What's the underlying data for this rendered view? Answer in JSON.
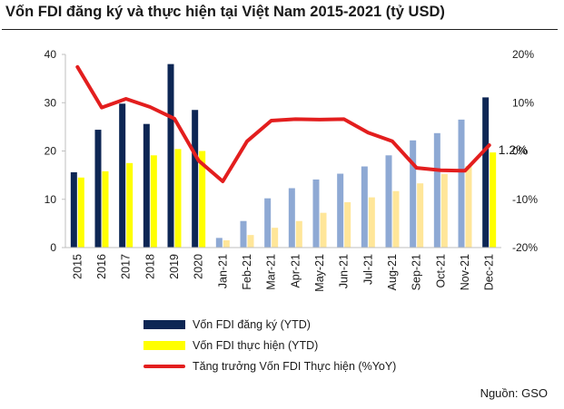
{
  "chart_data": {
    "type": "bar",
    "title": "Vốn FDI đăng ký và thực hiện tại Việt Nam 2015-2021 (tỷ USD)",
    "categories": [
      "2015",
      "2016",
      "2017",
      "2018",
      "2019",
      "2020",
      "Jan-21",
      "Feb-21",
      "Mar-21",
      "Apr-21",
      "May-21",
      "Jun-21",
      "Jul-21",
      "Aug-21",
      "Sep-21",
      "Oct-21",
      "Nov-21",
      "Dec-21"
    ],
    "left_axis": {
      "ylim": [
        0,
        40
      ],
      "ticks": [
        "0",
        "10",
        "20",
        "30",
        "40"
      ]
    },
    "right_axis": {
      "ylim": [
        -20,
        20
      ],
      "ticks": [
        "-20%",
        "-10%",
        "0%",
        "10%",
        "20%"
      ]
    },
    "series": [
      {
        "name": "Vốn FDI đăng ký (YTD)",
        "type": "bar",
        "axis": "left",
        "values": [
          15.6,
          24.4,
          29.8,
          25.6,
          38.0,
          28.5,
          2.0,
          5.5,
          10.2,
          12.3,
          14.1,
          15.3,
          16.8,
          19.1,
          22.2,
          23.7,
          26.5,
          31.1
        ],
        "colors": [
          "#0d2654",
          "#0d2654",
          "#0d2654",
          "#0d2654",
          "#0d2654",
          "#0d2654",
          "#8ea9d4",
          "#8ea9d4",
          "#8ea9d4",
          "#8ea9d4",
          "#8ea9d4",
          "#8ea9d4",
          "#8ea9d4",
          "#8ea9d4",
          "#8ea9d4",
          "#8ea9d4",
          "#8ea9d4",
          "#0d2654"
        ]
      },
      {
        "name": "Vốn FDI thực hiện (YTD)",
        "type": "bar",
        "axis": "left",
        "values": [
          14.5,
          15.8,
          17.5,
          19.1,
          20.4,
          20.0,
          1.5,
          2.6,
          4.1,
          5.5,
          7.2,
          9.4,
          10.4,
          11.7,
          13.3,
          15.2,
          16.9,
          19.7
        ],
        "colors": [
          "#ffff00",
          "#ffff00",
          "#ffff00",
          "#ffff00",
          "#ffff00",
          "#ffff00",
          "#ffe699",
          "#ffe699",
          "#ffe699",
          "#ffe699",
          "#ffe699",
          "#ffe699",
          "#ffe699",
          "#ffe699",
          "#ffe699",
          "#ffe699",
          "#ffe699",
          "#ffff00"
        ]
      },
      {
        "name": "Tăng trưởng Vốn FDI Thực hiện (%YoY)",
        "type": "line",
        "axis": "right",
        "values": [
          17.4,
          9.0,
          10.8,
          9.1,
          6.7,
          -2.0,
          -6.3,
          2.0,
          6.3,
          6.6,
          6.5,
          6.6,
          3.8,
          2.0,
          -3.5,
          -4.0,
          -4.1,
          1.2
        ],
        "color": "#e31e1e"
      }
    ],
    "data_labels": [
      {
        "series": 2,
        "index": 17,
        "text": "1.2%"
      }
    ],
    "legend_position": "bottom-left",
    "grid": false
  },
  "source": "Nguồn: GSO"
}
